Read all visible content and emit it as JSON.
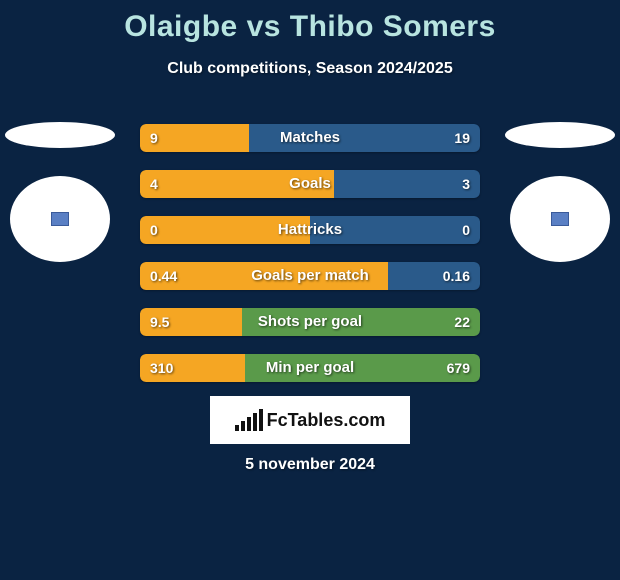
{
  "title": "Olaigbe vs Thibo Somers",
  "subtitle": "Club competitions, Season 2024/2025",
  "date": "5 november 2024",
  "logo_text": "FcTables.com",
  "colors": {
    "background": "#0a2342",
    "title_color": "#b8e4e0",
    "text_color": "#ffffff",
    "left_bar": "#f5a623",
    "right_bar": "#2a5a8a",
    "right_bar_green": "#5a9a4a",
    "logo_bg": "#ffffff"
  },
  "logo_bar_heights": [
    6,
    10,
    14,
    18,
    22
  ],
  "stats": [
    {
      "label": "Matches",
      "left_val": "9",
      "right_val": "19",
      "left_pct": 32,
      "right_color": "blue"
    },
    {
      "label": "Goals",
      "left_val": "4",
      "right_val": "3",
      "left_pct": 57,
      "right_color": "blue"
    },
    {
      "label": "Hattricks",
      "left_val": "0",
      "right_val": "0",
      "left_pct": 50,
      "right_color": "blue"
    },
    {
      "label": "Goals per match",
      "left_val": "0.44",
      "right_val": "0.16",
      "left_pct": 73,
      "right_color": "blue"
    },
    {
      "label": "Shots per goal",
      "left_val": "9.5",
      "right_val": "22",
      "left_pct": 30,
      "right_color": "green"
    },
    {
      "label": "Min per goal",
      "left_val": "310",
      "right_val": "679",
      "left_pct": 31,
      "right_color": "green"
    }
  ]
}
